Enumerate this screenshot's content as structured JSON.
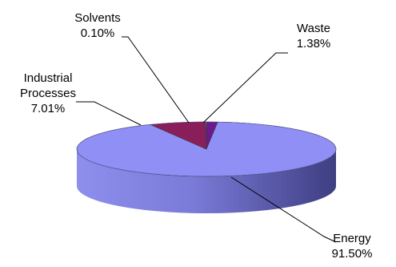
{
  "chart_data": {
    "type": "pie",
    "style": "3d",
    "categories": [
      "Energy",
      "Industrial Processes",
      "Solvents",
      "Waste"
    ],
    "values": [
      91.5,
      7.01,
      0.1,
      1.38
    ],
    "value_labels": [
      "91.50%",
      "7.01%",
      "0.10%",
      "1.38%"
    ],
    "label_lines": [
      [
        "Energy"
      ],
      [
        "Industrial",
        "Processes"
      ],
      [
        "Solvents"
      ],
      [
        "Waste"
      ]
    ],
    "colors": [
      "#8F8FF5",
      "#8A1E5A",
      "#FFFFB0",
      "#6A1A8C"
    ],
    "side_colors": [
      "#5A5AB8",
      "#5E143D",
      "#BFBF80",
      "#4A1262"
    ],
    "title": "",
    "legend": "none"
  }
}
